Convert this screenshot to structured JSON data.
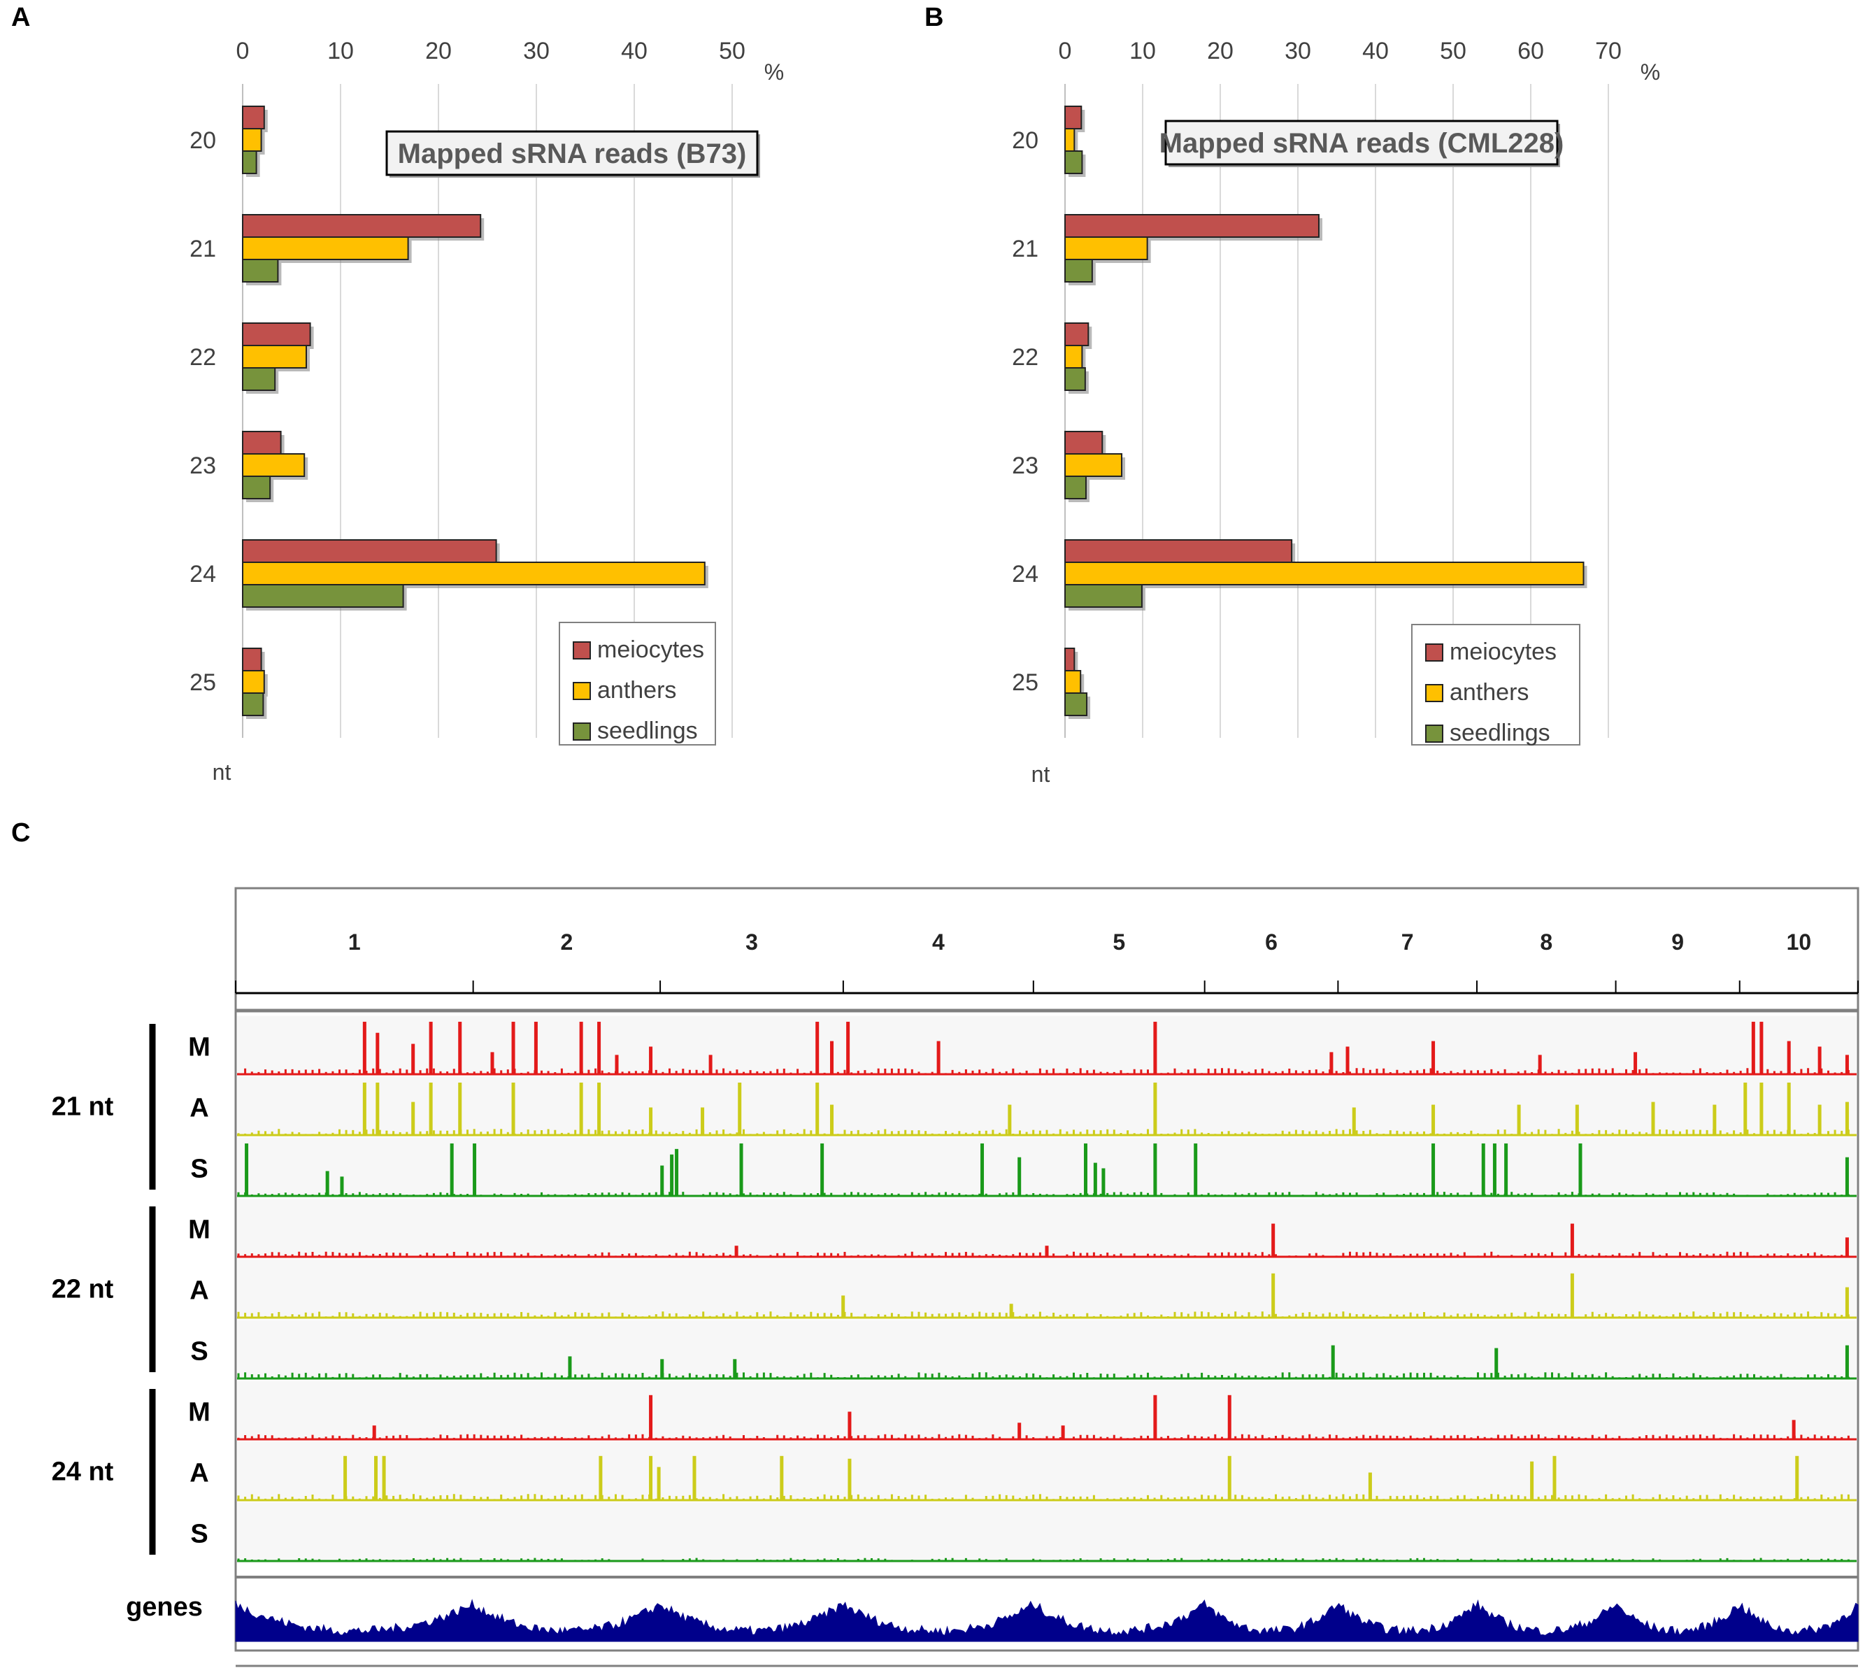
{
  "panels": {
    "a": {
      "letter": "A"
    },
    "b": {
      "letter": "B"
    },
    "c": {
      "letter": "C"
    }
  },
  "colors": {
    "meiocytes": "#c0504d",
    "anthers": "#ffc000",
    "seedlings": "#77933c",
    "track_m": "#e31a1a",
    "track_a": "#cccc1a",
    "track_s": "#1a9a1a",
    "genes": "#00008b"
  },
  "chart_data": [
    {
      "id": "A",
      "type": "bar",
      "orientation": "horizontal",
      "title": "Mapped sRNA reads (B73)",
      "xlabel": "%",
      "ylabel": "nt",
      "xlim": [
        0,
        50
      ],
      "xticks": [
        "0",
        "10",
        "20",
        "30",
        "40",
        "50"
      ],
      "grid": true,
      "legend_position": "bottom-right",
      "categories": [
        "20",
        "21",
        "22",
        "23",
        "24",
        "25"
      ],
      "series": [
        {
          "name": "meiocytes",
          "values": [
            2.2,
            24.3,
            6.9,
            3.9,
            25.9,
            1.9
          ]
        },
        {
          "name": "anthers",
          "values": [
            1.9,
            16.9,
            6.5,
            6.3,
            47.2,
            2.2
          ]
        },
        {
          "name": "seedlings",
          "values": [
            1.4,
            3.6,
            3.3,
            2.8,
            16.4,
            2.1
          ]
        }
      ]
    },
    {
      "id": "B",
      "type": "bar",
      "orientation": "horizontal",
      "title": "Mapped sRNA reads (CML228)",
      "xlabel": "%",
      "ylabel": "nt",
      "xlim": [
        0,
        70
      ],
      "xticks": [
        "0",
        "10",
        "20",
        "30",
        "40",
        "50",
        "60",
        "70"
      ],
      "grid": true,
      "legend_position": "bottom-right",
      "categories": [
        "20",
        "21",
        "22",
        "23",
        "24",
        "25"
      ],
      "series": [
        {
          "name": "meiocytes",
          "values": [
            2.1,
            32.7,
            3.0,
            4.8,
            29.2,
            1.2
          ]
        },
        {
          "name": "anthers",
          "values": [
            1.2,
            10.6,
            2.2,
            7.3,
            66.8,
            2.0
          ]
        },
        {
          "name": "seedlings",
          "values": [
            2.2,
            3.5,
            2.6,
            2.7,
            9.9,
            2.8
          ]
        }
      ]
    },
    {
      "id": "C",
      "type": "area",
      "description_free": true,
      "x_unit": "chromosome",
      "chromosomes": [
        "1",
        "2",
        "3",
        "4",
        "5",
        "6",
        "7",
        "8",
        "9",
        "10"
      ],
      "chromosome_relative_lengths": [
        301,
        237,
        232,
        241,
        217,
        169,
        176,
        176,
        157,
        150
      ],
      "groups": [
        {
          "label": "21 nt",
          "tracks": [
            {
              "name": "M",
              "baseline": 0.06,
              "peaks": [
                [
                  0.078,
                  0.95
                ],
                [
                  0.086,
                  0.75
                ],
                [
                  0.108,
                  0.55
                ],
                [
                  0.119,
                  0.95
                ],
                [
                  0.137,
                  0.95
                ],
                [
                  0.157,
                  0.4
                ],
                [
                  0.17,
                  0.95
                ],
                [
                  0.184,
                  0.95
                ],
                [
                  0.212,
                  0.95
                ],
                [
                  0.223,
                  0.95
                ],
                [
                  0.234,
                  0.35
                ],
                [
                  0.255,
                  0.5
                ],
                [
                  0.292,
                  0.35
                ],
                [
                  0.358,
                  0.95
                ],
                [
                  0.367,
                  0.6
                ],
                [
                  0.377,
                  0.95
                ],
                [
                  0.433,
                  0.6
                ],
                [
                  0.567,
                  0.95
                ],
                [
                  0.676,
                  0.4
                ],
                [
                  0.686,
                  0.5
                ],
                [
                  0.739,
                  0.6
                ],
                [
                  0.805,
                  0.35
                ],
                [
                  0.864,
                  0.4
                ],
                [
                  0.937,
                  0.95
                ],
                [
                  0.942,
                  0.95
                ],
                [
                  0.959,
                  0.6
                ],
                [
                  0.978,
                  0.5
                ],
                [
                  0.995,
                  0.35
                ]
              ]
            },
            {
              "name": "A",
              "baseline": 0.06,
              "peaks": [
                [
                  0.078,
                  0.95
                ],
                [
                  0.086,
                  0.95
                ],
                [
                  0.108,
                  0.6
                ],
                [
                  0.119,
                  0.95
                ],
                [
                  0.137,
                  0.95
                ],
                [
                  0.17,
                  0.95
                ],
                [
                  0.212,
                  0.95
                ],
                [
                  0.223,
                  0.95
                ],
                [
                  0.255,
                  0.5
                ],
                [
                  0.287,
                  0.5
                ],
                [
                  0.31,
                  0.95
                ],
                [
                  0.358,
                  0.95
                ],
                [
                  0.367,
                  0.55
                ],
                [
                  0.477,
                  0.55
                ],
                [
                  0.567,
                  0.95
                ],
                [
                  0.69,
                  0.5
                ],
                [
                  0.739,
                  0.55
                ],
                [
                  0.792,
                  0.55
                ],
                [
                  0.828,
                  0.55
                ],
                [
                  0.875,
                  0.6
                ],
                [
                  0.913,
                  0.55
                ],
                [
                  0.932,
                  0.95
                ],
                [
                  0.942,
                  0.95
                ],
                [
                  0.959,
                  0.95
                ],
                [
                  0.978,
                  0.55
                ],
                [
                  0.995,
                  0.6
                ]
              ]
            },
            {
              "name": "S",
              "baseline": 0.04,
              "peaks": [
                [
                  0.005,
                  0.95
                ],
                [
                  0.055,
                  0.45
                ],
                [
                  0.064,
                  0.35
                ],
                [
                  0.132,
                  0.95
                ],
                [
                  0.146,
                  0.95
                ],
                [
                  0.262,
                  0.55
                ],
                [
                  0.268,
                  0.75
                ],
                [
                  0.271,
                  0.85
                ],
                [
                  0.311,
                  0.95
                ],
                [
                  0.361,
                  0.95
                ],
                [
                  0.46,
                  0.95
                ],
                [
                  0.483,
                  0.7
                ],
                [
                  0.524,
                  0.95
                ],
                [
                  0.53,
                  0.6
                ],
                [
                  0.535,
                  0.5
                ],
                [
                  0.567,
                  0.95
                ],
                [
                  0.592,
                  0.95
                ],
                [
                  0.739,
                  0.95
                ],
                [
                  0.77,
                  0.95
                ],
                [
                  0.777,
                  0.95
                ],
                [
                  0.784,
                  0.95
                ],
                [
                  0.83,
                  0.95
                ],
                [
                  0.995,
                  0.7
                ]
              ]
            }
          ]
        },
        {
          "label": "22 nt",
          "tracks": [
            {
              "name": "M",
              "baseline": 0.05,
              "peaks": [
                [
                  0.64,
                  0.6
                ],
                [
                  0.825,
                  0.6
                ],
                [
                  0.995,
                  0.35
                ],
                [
                  0.308,
                  0.2
                ],
                [
                  0.5,
                  0.2
                ]
              ]
            },
            {
              "name": "A",
              "baseline": 0.06,
              "peaks": [
                [
                  0.64,
                  0.8
                ],
                [
                  0.825,
                  0.8
                ],
                [
                  0.995,
                  0.55
                ],
                [
                  0.374,
                  0.4
                ],
                [
                  0.478,
                  0.25
                ]
              ]
            },
            {
              "name": "S",
              "baseline": 0.06,
              "peaks": [
                [
                  0.205,
                  0.4
                ],
                [
                  0.262,
                  0.35
                ],
                [
                  0.307,
                  0.35
                ],
                [
                  0.677,
                  0.6
                ],
                [
                  0.778,
                  0.55
                ],
                [
                  0.995,
                  0.6
                ]
              ]
            }
          ]
        },
        {
          "label": "24 nt",
          "tracks": [
            {
              "name": "M",
              "baseline": 0.05,
              "peaks": [
                [
                  0.255,
                  0.8
                ],
                [
                  0.378,
                  0.5
                ],
                [
                  0.567,
                  0.8
                ],
                [
                  0.613,
                  0.8
                ],
                [
                  0.084,
                  0.25
                ],
                [
                  0.962,
                  0.35
                ],
                [
                  0.51,
                  0.25
                ],
                [
                  0.483,
                  0.3
                ]
              ]
            },
            {
              "name": "A",
              "baseline": 0.06,
              "peaks": [
                [
                  0.066,
                  0.8
                ],
                [
                  0.085,
                  0.8
                ],
                [
                  0.09,
                  0.8
                ],
                [
                  0.224,
                  0.8
                ],
                [
                  0.255,
                  0.8
                ],
                [
                  0.26,
                  0.6
                ],
                [
                  0.282,
                  0.8
                ],
                [
                  0.336,
                  0.8
                ],
                [
                  0.378,
                  0.75
                ],
                [
                  0.613,
                  0.8
                ],
                [
                  0.7,
                  0.5
                ],
                [
                  0.8,
                  0.7
                ],
                [
                  0.814,
                  0.8
                ],
                [
                  0.964,
                  0.8
                ]
              ]
            },
            {
              "name": "S",
              "baseline": 0.03,
              "peaks": []
            }
          ]
        }
      ],
      "genes_label": "genes"
    }
  ]
}
